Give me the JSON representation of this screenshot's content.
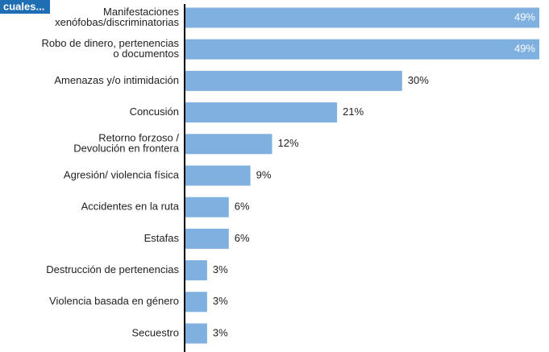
{
  "chart_data": {
    "type": "bar",
    "orientation": "horizontal",
    "title": "cuales...",
    "categories": [
      [
        "Manifestaciones",
        "xenófobas/discriminatorias"
      ],
      [
        "Robo de dinero, pertenencias",
        "o documentos"
      ],
      [
        "Amenazas y/o intimidación"
      ],
      [
        "Concusión"
      ],
      [
        "Retorno forzoso /",
        "Devolución en frontera"
      ],
      [
        "Agresión/ violencia física"
      ],
      [
        "Accidentes en la ruta"
      ],
      [
        "Estafas"
      ],
      [
        "Destrucción de pertenencias"
      ],
      [
        "Violencia basada en género"
      ],
      [
        "Secuestro"
      ]
    ],
    "values": [
      49,
      49,
      30,
      21,
      12,
      9,
      6,
      6,
      3,
      3,
      3
    ],
    "value_labels": [
      "49%",
      "49%",
      "30%",
      "21%",
      "12%",
      "9%",
      "6%",
      "6%",
      "3%",
      "3%",
      "3%"
    ],
    "color": "#7fb0e0",
    "xlim": [
      0,
      49
    ]
  }
}
